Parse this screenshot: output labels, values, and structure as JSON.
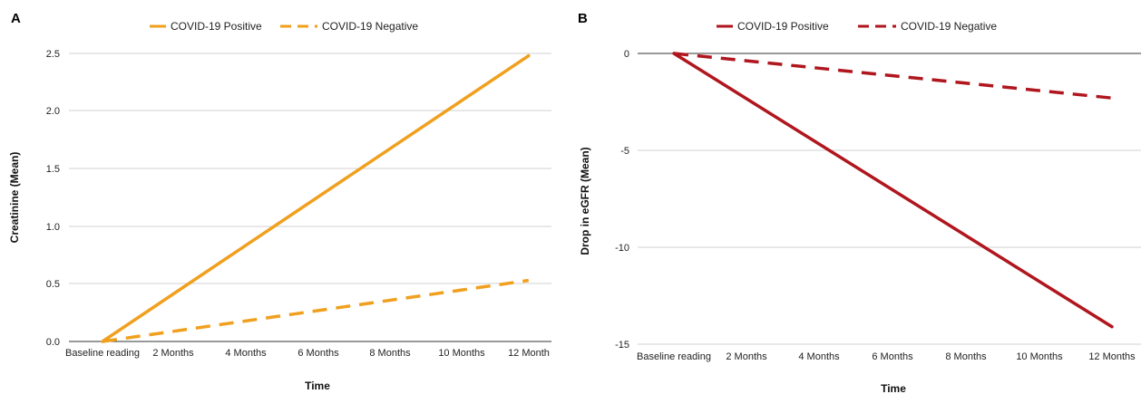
{
  "chart_data": [
    {
      "panel": "A",
      "type": "line",
      "categories": [
        "Baseline reading",
        "2 Months",
        "4 Months",
        "6 Months",
        "8 Months",
        "10 Months",
        "12 Month"
      ],
      "series": [
        {
          "name": "COVID-19 Positive",
          "x0": 0,
          "y0": 0,
          "x1": 6,
          "y1": 2.48,
          "style": "solid",
          "color": "#F0A01E"
        },
        {
          "name": "COVID-19 Negative",
          "x0": 0,
          "y0": 0,
          "x1": 6,
          "y1": 0.53,
          "style": "dashed",
          "color": "#F0A01E"
        }
      ],
      "yticks": [
        "0.0",
        "0.5",
        "1.0",
        "1.5",
        "2.0",
        "2.5"
      ],
      "ylim": [
        0,
        2.5
      ],
      "xlabel": "Time",
      "ylabel": "Creatinine (Mean)",
      "legend_position": "top",
      "grid": true
    },
    {
      "panel": "B",
      "type": "line",
      "categories": [
        "Baseline reading",
        "2 Months",
        "4 Months",
        "6 Months",
        "8 Months",
        "10 Months",
        "12 Months"
      ],
      "series": [
        {
          "name": "COVID-19 Positive",
          "x0": 0,
          "y0": 0,
          "x1": 6,
          "y1": -14.1,
          "style": "solid",
          "color": "#B0161E"
        },
        {
          "name": "COVID-19 Negative",
          "x0": 0,
          "y0": 0,
          "x1": 6,
          "y1": -2.3,
          "style": "dashed",
          "color": "#B0161E"
        }
      ],
      "yticks": [
        "0",
        "-5",
        "-10",
        "-15"
      ],
      "ylim": [
        -15,
        0
      ],
      "xlabel": "Time",
      "ylabel": "Drop in eGFR (Mean)",
      "legend_position": "top",
      "grid": true
    }
  ]
}
